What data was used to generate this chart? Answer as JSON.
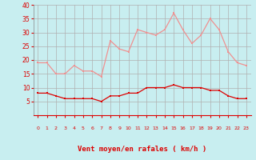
{
  "hours": [
    0,
    1,
    2,
    3,
    4,
    5,
    6,
    7,
    8,
    9,
    10,
    11,
    12,
    13,
    14,
    15,
    16,
    17,
    18,
    19,
    20,
    21,
    22,
    23
  ],
  "wind_avg": [
    8,
    8,
    7,
    6,
    6,
    6,
    6,
    5,
    7,
    7,
    8,
    8,
    10,
    10,
    10,
    11,
    10,
    10,
    10,
    9,
    9,
    7,
    6,
    6
  ],
  "wind_gust": [
    19,
    19,
    15,
    15,
    18,
    16,
    16,
    14,
    27,
    24,
    23,
    31,
    30,
    29,
    31,
    37,
    31,
    26,
    29,
    35,
    31,
    23,
    19,
    18
  ],
  "xlabel": "Vent moyen/en rafales ( km/h )",
  "ylim": [
    0,
    40
  ],
  "yticks": [
    5,
    10,
    15,
    20,
    25,
    30,
    35,
    40
  ],
  "bg_color": "#c8eef0",
  "grid_color": "#b0b0b0",
  "line_avg_color": "#dd0000",
  "line_gust_color": "#f09090",
  "xlabel_color": "#dd0000",
  "tick_color": "#dd0000",
  "spine_color": "#888888"
}
